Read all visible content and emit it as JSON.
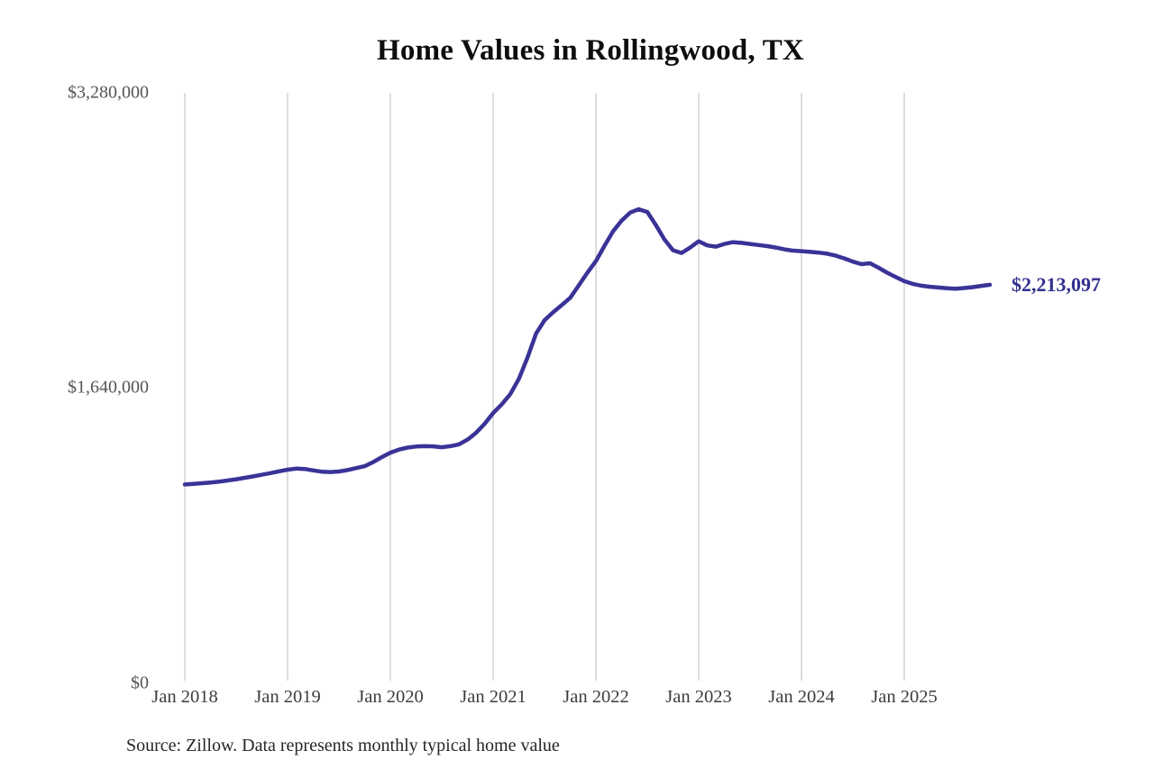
{
  "title": "Home Values in Rollingwood, TX",
  "source_note": "Source: Zillow. Data represents monthly typical home value",
  "annotation": {
    "end_value_label": "$2,213,097"
  },
  "colors": {
    "line": "#3a3397",
    "annotation_text": "#333090",
    "gridline": "#cbcbcb",
    "title_text": "#0e0e0e",
    "y_tick_text": "#555555",
    "x_tick_text": "#3d3d3d",
    "source_text": "#262626",
    "background": "#ffffff"
  },
  "chart_data": {
    "type": "line",
    "title": "Home Values in Rollingwood, TX",
    "xlabel": "",
    "ylabel": "",
    "ylim": [
      0,
      3280000
    ],
    "grid": "vertical-only",
    "legend_position": "none",
    "y_ticks": [
      {
        "label": "$0",
        "value": 0
      },
      {
        "label": "$1,640,000",
        "value": 1640000
      },
      {
        "label": "$3,280,000",
        "value": 3280000
      }
    ],
    "x_ticks": [
      {
        "label": "Jan 2018",
        "month": "2018-01"
      },
      {
        "label": "Jan 2019",
        "month": "2019-01"
      },
      {
        "label": "Jan 2020",
        "month": "2020-01"
      },
      {
        "label": "Jan 2021",
        "month": "2021-01"
      },
      {
        "label": "Jan 2022",
        "month": "2022-01"
      },
      {
        "label": "Jan 2023",
        "month": "2023-01"
      },
      {
        "label": "Jan 2024",
        "month": "2024-01"
      },
      {
        "label": "Jan 2025",
        "month": "2025-01"
      }
    ],
    "series": [
      {
        "name": "Monthly typical home value",
        "end_label": "$2,213,097",
        "x": [
          "2018-01",
          "2018-02",
          "2018-03",
          "2018-04",
          "2018-05",
          "2018-06",
          "2018-07",
          "2018-08",
          "2018-09",
          "2018-10",
          "2018-11",
          "2018-12",
          "2019-01",
          "2019-02",
          "2019-03",
          "2019-04",
          "2019-05",
          "2019-06",
          "2019-07",
          "2019-08",
          "2019-09",
          "2019-10",
          "2019-11",
          "2019-12",
          "2020-01",
          "2020-02",
          "2020-03",
          "2020-04",
          "2020-05",
          "2020-06",
          "2020-07",
          "2020-08",
          "2020-09",
          "2020-10",
          "2020-11",
          "2020-12",
          "2021-01",
          "2021-02",
          "2021-03",
          "2021-04",
          "2021-05",
          "2021-06",
          "2021-07",
          "2021-08",
          "2021-09",
          "2021-10",
          "2021-11",
          "2021-12",
          "2022-01",
          "2022-02",
          "2022-03",
          "2022-04",
          "2022-05",
          "2022-06",
          "2022-07",
          "2022-08",
          "2022-09",
          "2022-10",
          "2022-11",
          "2022-12",
          "2023-01",
          "2023-02",
          "2023-03",
          "2023-04",
          "2023-05",
          "2023-06",
          "2023-07",
          "2023-08",
          "2023-09",
          "2023-10",
          "2023-11",
          "2023-12",
          "2024-01",
          "2024-02",
          "2024-03",
          "2024-04",
          "2024-05",
          "2024-06",
          "2024-07",
          "2024-08",
          "2024-09",
          "2024-10",
          "2024-11",
          "2024-12",
          "2025-01",
          "2025-02",
          "2025-03",
          "2025-04",
          "2025-05",
          "2025-06",
          "2025-07",
          "2025-08",
          "2025-09",
          "2025-10",
          "2025-11"
        ],
        "values": [
          1103000,
          1106000,
          1110000,
          1114000,
          1119000,
          1125000,
          1132000,
          1140000,
          1148000,
          1157000,
          1166000,
          1176000,
          1185000,
          1191000,
          1189000,
          1181000,
          1174000,
          1172000,
          1175000,
          1183000,
          1194000,
          1205000,
          1228000,
          1255000,
          1280000,
          1297000,
          1308000,
          1314000,
          1316000,
          1315000,
          1310000,
          1316000,
          1326000,
          1352000,
          1390000,
          1440000,
          1500000,
          1548000,
          1605000,
          1690000,
          1807000,
          1941000,
          2016000,
          2060000,
          2100000,
          2141000,
          2210000,
          2280000,
          2345000,
          2430000,
          2510000,
          2570000,
          2615000,
          2633000,
          2618000,
          2545000,
          2465000,
          2405000,
          2390000,
          2420000,
          2455000,
          2432000,
          2425000,
          2440000,
          2450000,
          2446000,
          2440000,
          2434000,
          2428000,
          2420000,
          2410000,
          2403000,
          2400000,
          2396000,
          2392000,
          2386000,
          2375000,
          2360000,
          2342000,
          2328000,
          2333000,
          2308000,
          2280000,
          2256000,
          2233000,
          2218000,
          2208000,
          2202000,
          2198000,
          2194000,
          2191000,
          2195000,
          2200000,
          2207000,
          2213097
        ]
      }
    ]
  }
}
